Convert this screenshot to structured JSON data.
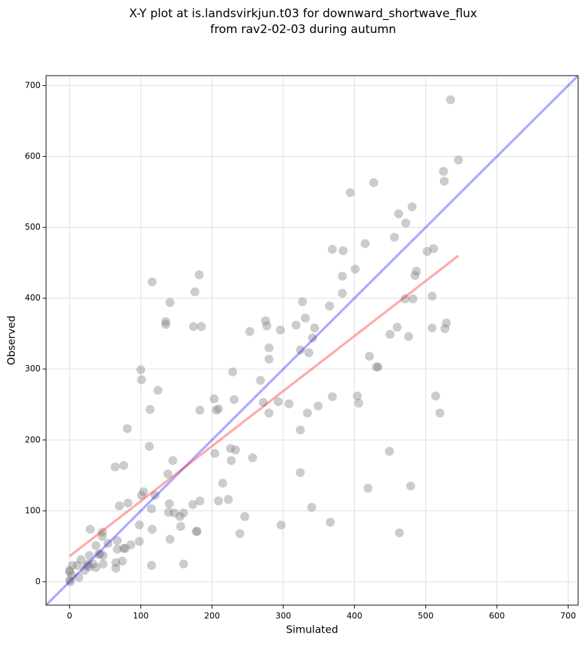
{
  "chart_data": {
    "type": "scatter",
    "title": [
      "X-Y plot at is.landsvirkjun.t03 for downward_shortwave_flux",
      "from rav2-02-03 during autumn"
    ],
    "xlabel": "Simulated",
    "ylabel": "Observed",
    "xlim": [
      -33,
      714
    ],
    "ylim": [
      -33,
      714
    ],
    "xticks": [
      0,
      100,
      200,
      300,
      400,
      500,
      600,
      700
    ],
    "yticks": [
      0,
      100,
      200,
      300,
      400,
      500,
      600,
      700
    ],
    "grid": true,
    "series": [
      {
        "color": "#808080",
        "x": [
          535,
          546,
          525,
          526,
          427,
          394,
          462,
          481,
          472,
          456,
          502,
          511,
          487,
          485,
          415,
          384,
          369,
          401,
          383,
          383,
          365,
          509,
          471,
          482,
          460,
          450,
          476,
          529,
          527,
          509,
          514,
          520,
          421,
          431,
          433,
          404,
          406,
          369,
          449,
          419,
          479,
          463,
          327,
          331,
          318,
          344,
          341,
          336,
          324,
          296,
          280,
          275,
          277,
          253,
          280,
          308,
          293,
          272,
          280,
          334,
          349,
          268,
          229,
          231,
          203,
          209,
          206,
          183,
          324,
          324,
          340,
          366,
          297,
          246,
          239,
          257,
          226,
          233,
          227,
          204,
          215,
          209,
          223,
          183,
          173,
          160,
          155,
          156,
          147,
          139,
          140,
          145,
          138,
          141,
          179,
          178,
          160,
          182,
          176,
          174,
          185,
          141,
          135,
          135,
          116,
          100,
          101,
          124,
          113,
          81,
          112,
          76,
          64,
          82,
          70,
          104,
          101,
          120,
          115,
          98,
          116,
          98,
          115,
          78,
          76,
          86,
          74,
          67,
          67,
          65,
          65,
          54,
          46,
          46,
          47,
          47,
          29,
          37,
          41,
          43,
          37,
          28,
          16,
          26,
          28,
          24,
          21,
          11,
          4,
          13,
          3,
          0,
          0,
          0,
          1,
          33
        ],
        "y": [
          680,
          595,
          579,
          565,
          563,
          549,
          519,
          529,
          506,
          486,
          466,
          470,
          438,
          432,
          477,
          467,
          469,
          441,
          431,
          407,
          389,
          403,
          399,
          399,
          359,
          349,
          346,
          365,
          357,
          358,
          262,
          238,
          318,
          303,
          303,
          262,
          252,
          261,
          184,
          132,
          135,
          69,
          395,
          372,
          362,
          358,
          344,
          323,
          327,
          355,
          330,
          368,
          361,
          353,
          314,
          251,
          254,
          253,
          238,
          238,
          248,
          284,
          296,
          257,
          258,
          244,
          242,
          242,
          214,
          154,
          105,
          84,
          80,
          92,
          68,
          175,
          188,
          186,
          171,
          181,
          139,
          114,
          116,
          114,
          109,
          97,
          92,
          78,
          97,
          98,
          110,
          171,
          152,
          60,
          71,
          71,
          25,
          433,
          409,
          360,
          360,
          394,
          367,
          363,
          423,
          299,
          285,
          270,
          243,
          216,
          191,
          164,
          162,
          111,
          107,
          127,
          122,
          122,
          103,
          80,
          74,
          57,
          23,
          47,
          47,
          52,
          29,
          58,
          46,
          27,
          19,
          54,
          70,
          64,
          37,
          25,
          74,
          51,
          39,
          39,
          20,
          37,
          31,
          25,
          21,
          22,
          16,
          23,
          23,
          6,
          9,
          14,
          16,
          2,
          0,
          25
        ]
      }
    ],
    "lines": [
      {
        "color": "#0000ff",
        "x": [
          -33,
          714
        ],
        "y": [
          -33,
          714
        ]
      },
      {
        "color": "#ff0000",
        "x": [
          0,
          546
        ],
        "y": [
          36,
          460
        ]
      }
    ]
  }
}
